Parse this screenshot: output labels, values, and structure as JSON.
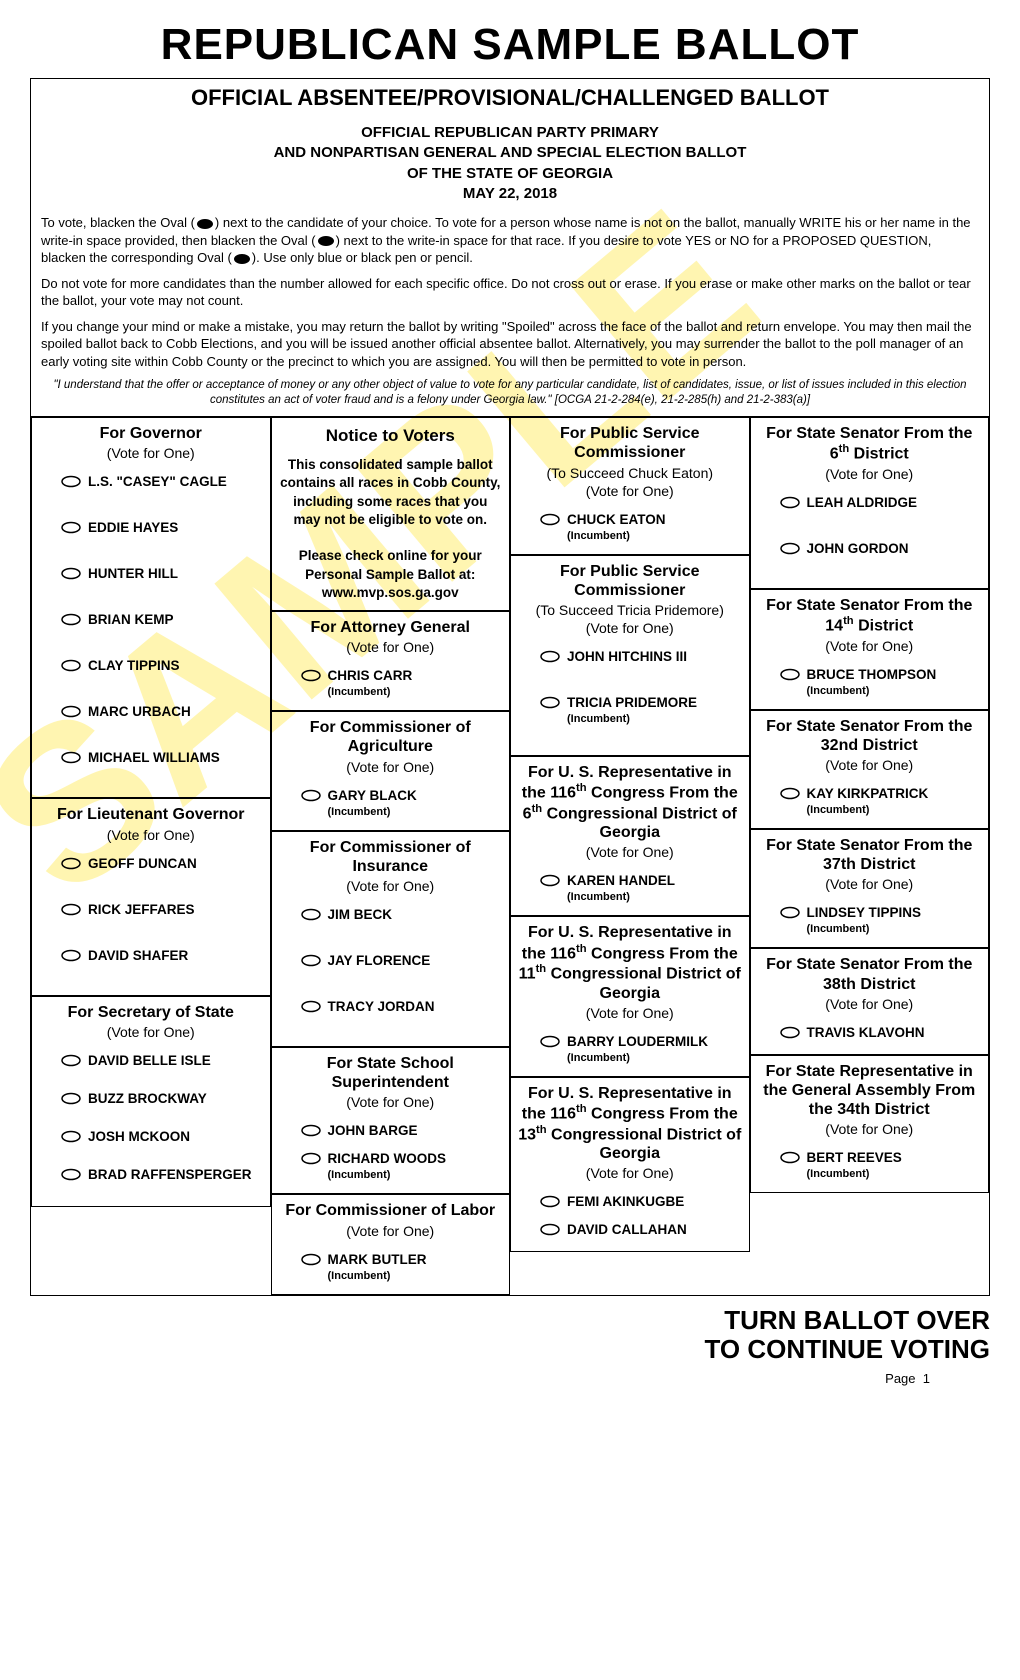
{
  "main_title": "REPUBLICAN SAMPLE BALLOT",
  "subtitle": "OFFICIAL ABSENTEE/PROVISIONAL/CHALLENGED BALLOT",
  "sub_header_lines": [
    "OFFICIAL REPUBLICAN PARTY PRIMARY",
    "AND NONPARTISAN GENERAL AND SPECIAL ELECTION BALLOT",
    "OF THE STATE OF GEORGIA",
    "MAY 22, 2018"
  ],
  "instr1_a": "To vote, blacken the Oval (",
  "instr1_b": ") next to the candidate of your choice. To vote for a person whose name is not on the ballot, manually WRITE his or her name in the write-in space provided, then blacken the Oval (",
  "instr1_c": ") next to the write-in space for that race. If you desire to vote YES or NO for a PROPOSED QUESTION, blacken the corresponding Oval (",
  "instr1_d": "). Use only blue or black pen or pencil.",
  "instr2": "Do not vote for more candidates than the number allowed for each specific office. Do not cross out or erase. If you erase or make other marks on the ballot or tear the ballot, your vote may not count.",
  "instr3": "If you change your mind or make a mistake, you may return the ballot by writing \"Spoiled\" across the face of the ballot and return envelope. You may then mail the spoiled ballot back to Cobb Elections, and you will be issued another official absentee ballot. Alternatively, you may surrender the ballot to the poll manager of an early voting site within Cobb County or the precinct to which you are assigned. You will then be permitted to vote in person.",
  "disclaimer": "\"I understand that the offer or acceptance of money or any other object of value to vote for any particular candidate, list of candidates, issue, or list of issues included in this election constitutes an act of voter fraud and is a felony under Georgia law.\" [OCGA 21-2-284(e), 21-2-285(h) and 21-2-383(a)]",
  "watermark": "SAMPLE",
  "vote_for_one": "(Vote for One)",
  "incumbent_label": "(Incumbent)",
  "notice": {
    "title": "Notice to Voters",
    "body1": "This consolidated sample ballot contains all races in Cobb County, including some races that you may not be eligible to vote on.",
    "body2": "Please check online for your Personal Sample Ballot at:",
    "url": "www.mvp.sos.ga.gov"
  },
  "col1": [
    {
      "title": "For Governor",
      "candidates": [
        {
          "name": "L.S. \"CASEY\" CAGLE"
        },
        {
          "name": "EDDIE HAYES"
        },
        {
          "name": "HUNTER HILL"
        },
        {
          "name": "BRIAN KEMP"
        },
        {
          "name": "CLAY TIPPINS"
        },
        {
          "name": "MARC URBACH"
        },
        {
          "name": "MICHAEL WILLIAMS"
        }
      ]
    },
    {
      "title": "For Lieutenant Governor",
      "candidates": [
        {
          "name": "GEOFF DUNCAN"
        },
        {
          "name": "RICK JEFFARES"
        },
        {
          "name": "DAVID SHAFER"
        }
      ]
    },
    {
      "title": "For Secretary of State",
      "candidates": [
        {
          "name": "DAVID BELLE ISLE"
        },
        {
          "name": "BUZZ BROCKWAY"
        },
        {
          "name": "JOSH MCKOON"
        },
        {
          "name": "BRAD RAFFENSPERGER"
        }
      ]
    }
  ],
  "col2": [
    {
      "title": "For Attorney General",
      "candidates": [
        {
          "name": "CHRIS CARR",
          "inc": true
        }
      ]
    },
    {
      "title": "For Commissioner of Agriculture",
      "candidates": [
        {
          "name": "GARY BLACK",
          "inc": true
        }
      ]
    },
    {
      "title": "For Commissioner of Insurance",
      "candidates": [
        {
          "name": "JIM BECK"
        },
        {
          "name": "JAY FLORENCE"
        },
        {
          "name": "TRACY JORDAN"
        }
      ]
    },
    {
      "title": "For State School Superintendent",
      "candidates": [
        {
          "name": "JOHN BARGE"
        },
        {
          "name": "RICHARD WOODS",
          "inc": true
        }
      ]
    },
    {
      "title": "For Commissioner of Labor",
      "candidates": [
        {
          "name": "MARK BUTLER",
          "inc": true
        }
      ]
    }
  ],
  "col3": [
    {
      "title": "For Public Service Commissioner",
      "sub": "(To Succeed Chuck Eaton)",
      "candidates": [
        {
          "name": "CHUCK EATON",
          "inc": true
        }
      ]
    },
    {
      "title": "For Public Service Commissioner",
      "sub": "(To Succeed Tricia Pridemore)",
      "candidates": [
        {
          "name": "JOHN HITCHINS III"
        },
        {
          "name": "TRICIA PRIDEMORE",
          "inc": true
        }
      ]
    },
    {
      "title_html": "For U. S. Representative in the 116<sup>th</sup> Congress From the 6<sup>th</sup> Congressional District of Georgia",
      "candidates": [
        {
          "name": "KAREN HANDEL",
          "inc": true
        }
      ]
    },
    {
      "title_html": "For U. S. Representative in the 116<sup>th</sup> Congress From the 11<sup>th</sup> Congressional District of Georgia",
      "candidates": [
        {
          "name": "BARRY LOUDERMILK",
          "inc": true
        }
      ]
    },
    {
      "title_html": "For U. S. Representative in the 116<sup>th</sup> Congress From the 13<sup>th</sup> Congressional District of Georgia",
      "candidates": [
        {
          "name": "FEMI AKINKUGBE"
        },
        {
          "name": "DAVID CALLAHAN"
        }
      ]
    }
  ],
  "col4": [
    {
      "title_html": "For State Senator From the 6<sup>th</sup> District",
      "candidates": [
        {
          "name": "LEAH ALDRIDGE"
        },
        {
          "name": "JOHN GORDON"
        }
      ]
    },
    {
      "title_html": "For State Senator From the 14<sup>th</sup> District",
      "candidates": [
        {
          "name": "BRUCE THOMPSON",
          "inc": true
        }
      ]
    },
    {
      "title": "For State Senator From the 32nd District",
      "candidates": [
        {
          "name": "KAY KIRKPATRICK",
          "inc": true
        }
      ]
    },
    {
      "title": "For State Senator From the 37th District",
      "candidates": [
        {
          "name": "LINDSEY TIPPINS",
          "inc": true
        }
      ]
    },
    {
      "title": "For State Senator From the 38th District",
      "candidates": [
        {
          "name": "TRAVIS KLAVOHN"
        }
      ]
    },
    {
      "title": "For State Representative in the General Assembly From the 34th District",
      "candidates": [
        {
          "name": "BERT REEVES",
          "inc": true
        }
      ]
    }
  ],
  "footer_line1": "TURN BALLOT OVER",
  "footer_line2": "TO CONTINUE VOTING",
  "page_label": "Page",
  "page_num": "1"
}
